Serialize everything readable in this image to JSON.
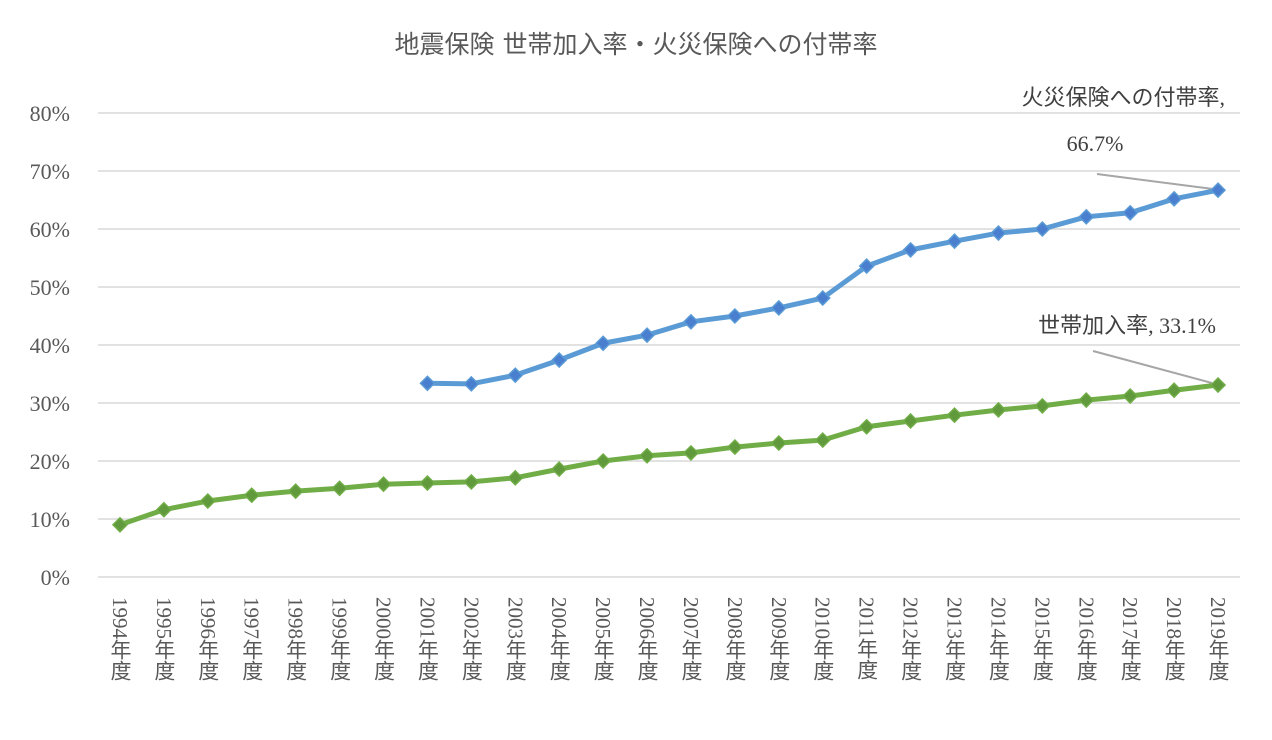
{
  "chart_data": {
    "type": "line",
    "title": "地震保険 世帯加入率・火災保険への付帯率",
    "categories": [
      "1994年度",
      "1995年度",
      "1996年度",
      "1997年度",
      "1998年度",
      "1999年度",
      "2000年度",
      "2001年度",
      "2002年度",
      "2003年度",
      "2004年度",
      "2005年度",
      "2006年度",
      "2007年度",
      "2008年度",
      "2009年度",
      "2010年度",
      "2011年度",
      "2012年度",
      "2013年度",
      "2014年度",
      "2015年度",
      "2016年度",
      "2017年度",
      "2018年度",
      "2019年度"
    ],
    "series": [
      {
        "name": "火災保険への付帯率",
        "color": "#5b9bd5",
        "marker_color": "#4a7fcf",
        "values": [
          null,
          null,
          null,
          null,
          null,
          null,
          null,
          33.4,
          33.3,
          34.8,
          37.4,
          40.3,
          41.7,
          44.0,
          45.0,
          46.4,
          48.1,
          53.6,
          56.4,
          57.9,
          59.3,
          60.0,
          62.1,
          62.8,
          65.2,
          66.7
        ]
      },
      {
        "name": "世帯加入率",
        "color": "#70ad47",
        "marker_color": "#609a3c",
        "values": [
          9.0,
          11.6,
          13.1,
          14.1,
          14.8,
          15.3,
          16.0,
          16.2,
          16.4,
          17.1,
          18.6,
          20.0,
          20.9,
          21.4,
          22.4,
          23.1,
          23.6,
          25.9,
          26.9,
          27.9,
          28.8,
          29.5,
          30.5,
          31.2,
          32.2,
          33.1
        ]
      }
    ],
    "annotations": [
      {
        "lines": [
          "火災保険への付帯率,",
          "66.7%"
        ]
      },
      {
        "lines": [
          "世帯加入率, 33.1%"
        ]
      }
    ],
    "ylim": [
      0,
      80
    ],
    "yticks": [
      {
        "value": 0,
        "label": "0%"
      },
      {
        "value": 10,
        "label": "10%"
      },
      {
        "value": 20,
        "label": "20%"
      },
      {
        "value": 30,
        "label": "30%"
      },
      {
        "value": 40,
        "label": "40%"
      },
      {
        "value": 50,
        "label": "50%"
      },
      {
        "value": 60,
        "label": "60%"
      },
      {
        "value": 70,
        "label": "70%"
      },
      {
        "value": 80,
        "label": "80%"
      }
    ],
    "grid": true
  }
}
